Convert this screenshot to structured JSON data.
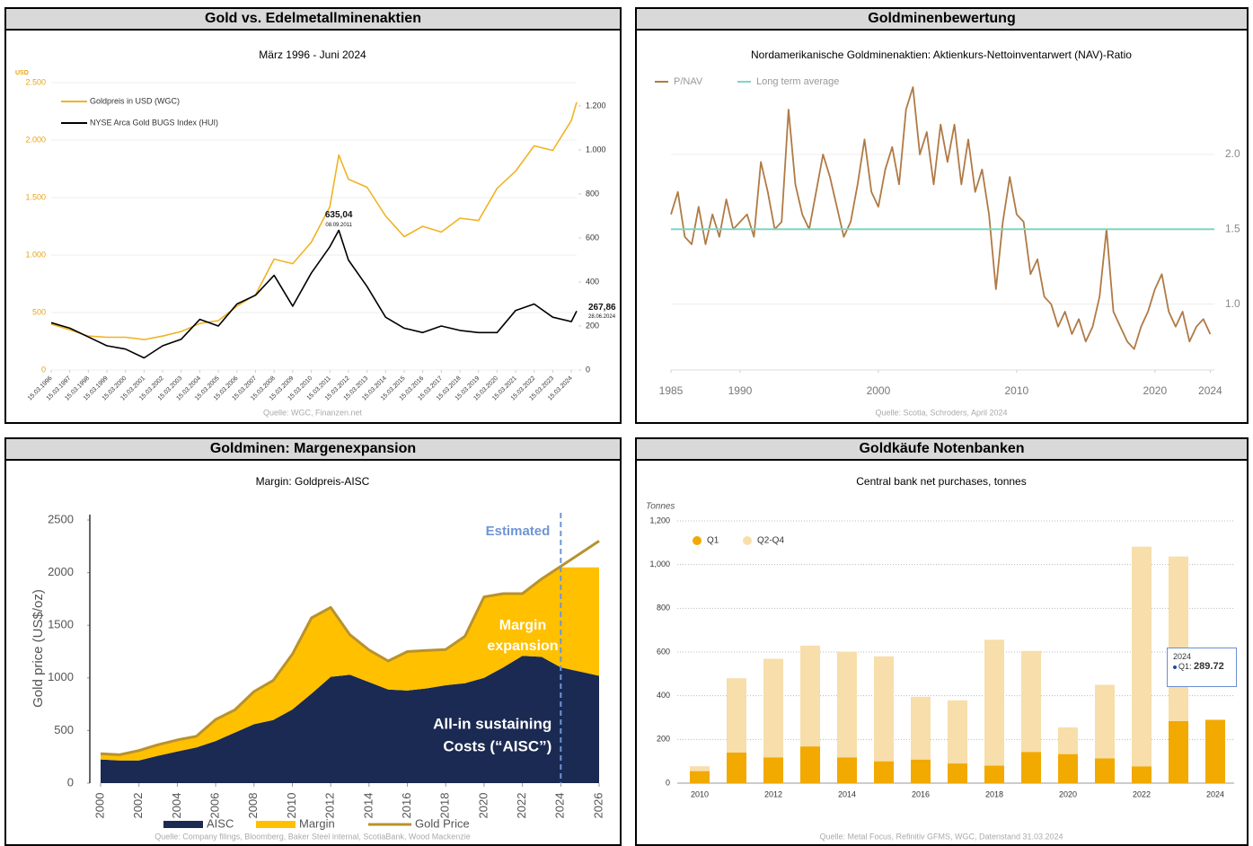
{
  "chart_data": [
    {
      "type": "line",
      "title": "Gold vs. Edelmetallminenaktien",
      "subtitle": "März 1996 - Juni 2024",
      "source": "Quelle: WGC, Finanzen.net",
      "y_unit": "USD",
      "x": [
        "15.03.1996",
        "15.03.1997",
        "15.03.1998",
        "15.03.1999",
        "15.03.2000",
        "15.03.2001",
        "15.03.2002",
        "15.03.2003",
        "15.03.2004",
        "15.03.2005",
        "15.03.2006",
        "15.03.2007",
        "15.03.2008",
        "15.03.2009",
        "15.03.2010",
        "15.03.2011",
        "08.09.2011",
        "15.03.2012",
        "15.03.2013",
        "15.03.2014",
        "15.03.2015",
        "15.03.2016",
        "15.03.2017",
        "15.03.2018",
        "15.03.2019",
        "15.03.2020",
        "15.03.2021",
        "15.03.2022",
        "15.03.2023",
        "15.03.2024",
        "28.06.2024"
      ],
      "series": [
        {
          "name": "Goldpreis in USD (WGC)",
          "color": "#f0b323",
          "values": [
            400,
            350,
            295,
            285,
            285,
            265,
            295,
            335,
            405,
            430,
            555,
            655,
            965,
            925,
            1110,
            1420,
            1870,
            1660,
            1590,
            1340,
            1160,
            1250,
            1200,
            1320,
            1300,
            1580,
            1730,
            1950,
            1910,
            2170,
            2330
          ]
        },
        {
          "name": "NYSE Arca Gold BUGS Index (HUI)",
          "color": "#000000",
          "axis": "y2",
          "values": [
            215,
            190,
            150,
            110,
            95,
            55,
            110,
            140,
            230,
            200,
            300,
            340,
            430,
            290,
            440,
            560,
            635.04,
            500,
            380,
            240,
            190,
            170,
            200,
            180,
            170,
            170,
            270,
            300,
            240,
            220,
            267.86
          ],
          "value_labels": [
            null,
            null,
            null,
            null,
            null,
            null,
            null,
            null,
            null,
            null,
            null,
            null,
            null,
            null,
            null,
            null,
            "635,04",
            null,
            null,
            null,
            null,
            null,
            null,
            null,
            null,
            null,
            null,
            null,
            null,
            null,
            "267,86"
          ]
        }
      ],
      "xlim": [
        "15.03.1996",
        "28.06.2024"
      ],
      "xticks": [
        "15.03.1996",
        "15.03.1997",
        "15.03.1998",
        "15.03.1999",
        "15.03.2000",
        "15.03.2001",
        "15.03.2002",
        "15.03.2003",
        "15.03.2004",
        "15.03.2005",
        "15.03.2006",
        "15.03.2007",
        "15.03.2008",
        "15.03.2009",
        "15.03.2010",
        "15.03.2011",
        "15.03.2012",
        "15.03.2013",
        "15.03.2014",
        "15.03.2015",
        "15.03.2016",
        "15.03.2017",
        "15.03.2018",
        "15.03.2019",
        "15.03.2020",
        "15.03.2021",
        "15.03.2022",
        "15.03.2023",
        "15.03.2024"
      ],
      "ylim": [
        0,
        2500
      ],
      "yticks": [
        0,
        500,
        {
          "value": 1000,
          "label": "1.000"
        },
        {
          "value": 1500,
          "label": "1.500"
        },
        {
          "value": 2000,
          "label": "2.000"
        },
        {
          "value": 2500,
          "label": "2.500"
        }
      ],
      "y2lim": [
        0,
        1306
      ],
      "y2ticks": [
        0,
        200,
        400,
        600,
        800,
        {
          "value": 1000,
          "label": "1.000"
        },
        {
          "value": 1200,
          "label": "1.200"
        }
      ],
      "grid": true
    },
    {
      "type": "line",
      "title": "Goldminenbewertung",
      "subtitle": "Nordamerikanische Goldminenaktien: Aktienkurs-Nettoinventarwert (NAV)-Ratio",
      "source": "Quelle: Scotia, Schroders, April 2024",
      "series": [
        {
          "name": "P/NAV",
          "color": "#b07a45",
          "x": [
            1985,
            1985.5,
            1986,
            1986.5,
            1987,
            1987.5,
            1988,
            1988.5,
            1989,
            1989.5,
            1990,
            1990.5,
            1991,
            1991.5,
            1992,
            1992.5,
            1993,
            1993.5,
            1994,
            1994.5,
            1995,
            1995.5,
            1996,
            1996.5,
            1997,
            1997.5,
            1998,
            1998.5,
            1999,
            1999.5,
            2000,
            2000.5,
            2001,
            2001.5,
            2002,
            2002.5,
            2003,
            2003.5,
            2004,
            2004.5,
            2005,
            2005.5,
            2006,
            2006.5,
            2007,
            2007.5,
            2008,
            2008.5,
            2009,
            2009.5,
            2010,
            2010.5,
            2011,
            2011.5,
            2012,
            2012.5,
            2013,
            2013.5,
            2014,
            2014.5,
            2015,
            2015.5,
            2016,
            2016.5,
            2017,
            2017.5,
            2018,
            2018.5,
            2019,
            2019.5,
            2020,
            2020.5,
            2021,
            2021.5,
            2022,
            2022.5,
            2023,
            2023.5,
            2024
          ],
          "values": [
            1.6,
            1.75,
            1.45,
            1.4,
            1.65,
            1.4,
            1.6,
            1.45,
            1.7,
            1.5,
            1.55,
            1.6,
            1.45,
            1.95,
            1.75,
            1.5,
            1.55,
            2.3,
            1.8,
            1.6,
            1.5,
            1.75,
            2.0,
            1.85,
            1.65,
            1.45,
            1.55,
            1.8,
            2.1,
            1.75,
            1.65,
            1.9,
            2.05,
            1.8,
            2.3,
            2.45,
            2.0,
            2.15,
            1.8,
            2.2,
            1.95,
            2.2,
            1.8,
            2.1,
            1.75,
            1.9,
            1.6,
            1.1,
            1.55,
            1.85,
            1.6,
            1.55,
            1.2,
            1.3,
            1.05,
            1.0,
            0.85,
            0.95,
            0.8,
            0.9,
            0.75,
            0.85,
            1.05,
            1.5,
            0.95,
            0.85,
            0.75,
            0.7,
            0.85,
            0.95,
            1.1,
            1.2,
            0.95,
            0.85,
            0.95,
            0.75,
            0.85,
            0.9,
            0.8
          ]
        },
        {
          "name": "Long term average",
          "color": "#7fd6c2",
          "x": [
            1985,
            2024.3
          ],
          "values": [
            1.5,
            1.5
          ]
        }
      ],
      "xlim": [
        1985,
        2024.3
      ],
      "xticks": [
        1985,
        1990,
        2000,
        2010,
        2020,
        2024
      ],
      "ylim": [
        0.56,
        2.42
      ],
      "yticks": [
        {
          "value": 1,
          "label": "1.0"
        },
        1.5,
        {
          "value": 2,
          "label": "2.0"
        }
      ],
      "grid": true
    },
    {
      "type": "area",
      "title": "Goldminen: Margenexpansion",
      "subtitle": "Margin: Goldpreis-AISC",
      "source": "Quelle: Company filings, Bloomberg, Baker Steel internal, ScotiaBank, Wood Mackenzie",
      "ylabel": "Gold price (US$/oz)",
      "x": [
        2000,
        2001,
        2002,
        2003,
        2004,
        2005,
        2006,
        2007,
        2008,
        2009,
        2010,
        2011,
        2012,
        2013,
        2014,
        2015,
        2016,
        2017,
        2018,
        2019,
        2020,
        2021,
        2022,
        2023,
        2024,
        2025,
        2026
      ],
      "series": [
        {
          "name": "AISC",
          "color": "#1b2a52",
          "values": [
            225,
            215,
            215,
            260,
            300,
            340,
            400,
            480,
            560,
            600,
            700,
            850,
            1010,
            1030,
            960,
            890,
            880,
            900,
            930,
            950,
            1000,
            1100,
            1210,
            1200,
            1100,
            1060,
            1020
          ]
        },
        {
          "name": "Margin",
          "color": "#ffc000",
          "values": [
            55,
            55,
            95,
            105,
            110,
            105,
            205,
            215,
            310,
            375,
            525,
            720,
            660,
            380,
            305,
            270,
            370,
            360,
            340,
            445,
            770,
            700,
            590,
            740,
            950,
            990,
            1030
          ]
        },
        {
          "name": "Gold Price",
          "color": "#b8922e",
          "type": "line",
          "values": [
            280,
            270,
            310,
            365,
            410,
            445,
            605,
            695,
            870,
            975,
            1225,
            1570,
            1670,
            1410,
            1265,
            1160,
            1250,
            1260,
            1270,
            1395,
            1770,
            1800,
            1800,
            1940,
            2060,
            2180,
            2300
          ]
        }
      ],
      "estimated_from": 2024,
      "estimate_label": "Estimated",
      "margin_label": [
        "Margin",
        "expansion"
      ],
      "aisc_label": [
        "All-in sustaining",
        "Costs (“AISC”)"
      ],
      "xlim": [
        2000,
        2026
      ],
      "xticks": [
        2000,
        2002,
        2004,
        2006,
        2008,
        2010,
        2012,
        2014,
        2016,
        2018,
        2020,
        2022,
        2024,
        2026
      ],
      "ylim": [
        0,
        2500
      ],
      "yticks": [
        0,
        500,
        1000,
        1500,
        2000,
        2500
      ]
    },
    {
      "type": "bar",
      "title": "Goldkäufe Notenbanken",
      "subtitle": "Central bank net purchases, tonnes",
      "source": "Quelle: Metal Focus, Refinitiv GFMS, WGC, Datenstand 31.03.2024",
      "ylabel": "Tonnes",
      "stacked": true,
      "categories": [
        "2010",
        null,
        "2012",
        null,
        "2014",
        null,
        "2016",
        null,
        "2018",
        null,
        "2020",
        null,
        "2022",
        null,
        "2024"
      ],
      "series": [
        {
          "name": "Q1",
          "color": "#f2a900",
          "values": [
            55,
            140,
            118,
            168,
            118,
            100,
            108,
            90,
            80,
            143,
            133,
            113,
            77,
            284,
            289.72
          ]
        },
        {
          "name": "Q2-Q4",
          "color": "#f7deaa",
          "values": [
            22,
            340,
            451,
            461,
            483,
            480,
            287,
            289,
            576,
            462,
            122,
            337,
            1005,
            753,
            null
          ]
        }
      ],
      "tooltip_index": 14,
      "ylim": [
        0,
        1200
      ],
      "yticks": [
        0,
        200,
        400,
        600,
        800,
        {
          "value": 1000,
          "label": "1,000"
        },
        {
          "value": 1200,
          "label": "1,200"
        }
      ],
      "grid": true
    }
  ]
}
